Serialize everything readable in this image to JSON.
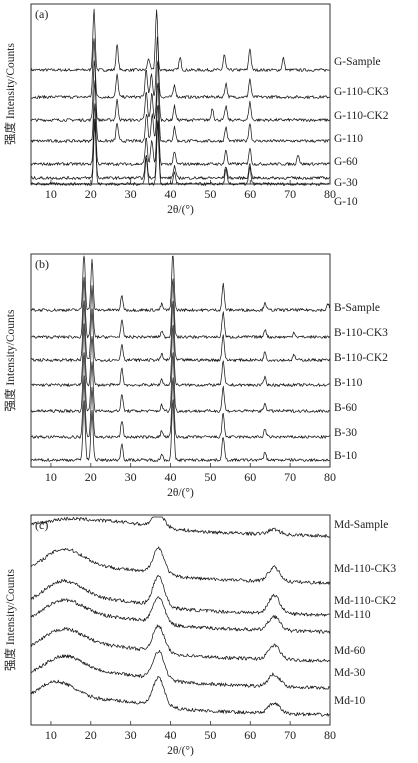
{
  "chart_data": [
    {
      "panel": "(a)",
      "type": "line",
      "xlabel": "2θ/(°)",
      "ylabel": "强度 Intensity/Counts",
      "xlim": [
        5,
        80
      ],
      "x_ticks": [
        10,
        20,
        30,
        40,
        50,
        60,
        70,
        80
      ],
      "series": [
        {
          "name": "G-Sample",
          "peaks": [
            [
              20.8,
              60
            ],
            [
              26.6,
              25
            ],
            [
              34.5,
              12
            ],
            [
              36.5,
              60
            ],
            [
              42.4,
              12
            ],
            [
              53.5,
              15
            ],
            [
              59.9,
              22
            ],
            [
              68.3,
              12
            ]
          ]
        },
        {
          "name": "G-110-CK3",
          "peaks": [
            [
              20.8,
              60
            ],
            [
              26.6,
              22
            ],
            [
              33.9,
              28
            ],
            [
              35.2,
              22
            ],
            [
              36.7,
              60
            ],
            [
              41.0,
              12
            ],
            [
              53.9,
              14
            ],
            [
              59.9,
              18
            ]
          ]
        },
        {
          "name": "G-110-CK2",
          "peaks": [
            [
              20.9,
              60
            ],
            [
              26.6,
              20
            ],
            [
              33.9,
              28
            ],
            [
              35.3,
              26
            ],
            [
              36.8,
              60
            ],
            [
              41.0,
              14
            ],
            [
              50.5,
              12
            ],
            [
              53.9,
              14
            ],
            [
              59.9,
              18
            ]
          ]
        },
        {
          "name": "G-110",
          "peaks": [
            [
              21.0,
              60
            ],
            [
              26.6,
              18
            ],
            [
              34.0,
              28
            ],
            [
              35.4,
              28
            ],
            [
              36.8,
              60
            ],
            [
              41.0,
              14
            ],
            [
              53.9,
              14
            ],
            [
              59.9,
              18
            ]
          ]
        },
        {
          "name": "G-60",
          "peaks": [
            [
              21.0,
              60
            ],
            [
              33.9,
              26
            ],
            [
              35.3,
              24
            ],
            [
              36.8,
              60
            ],
            [
              41.0,
              12
            ],
            [
              53.9,
              14
            ],
            [
              59.9,
              16
            ],
            [
              72.0,
              10
            ]
          ]
        },
        {
          "name": "G-30",
          "peaks": [
            [
              21.0,
              60
            ],
            [
              33.9,
              26
            ],
            [
              36.8,
              60
            ],
            [
              41.0,
              12
            ],
            [
              53.9,
              14
            ],
            [
              59.9,
              16
            ]
          ]
        },
        {
          "name": "G-10",
          "peaks": [
            [
              21.0,
              60
            ],
            [
              33.9,
              24
            ],
            [
              36.8,
              60
            ],
            [
              41.0,
              12
            ],
            [
              53.9,
              12
            ],
            [
              59.9,
              14
            ]
          ]
        }
      ]
    },
    {
      "panel": "(b)",
      "type": "line",
      "xlabel": "2θ/(°)",
      "ylabel": "强度 Intensity/Counts",
      "xlim": [
        5,
        80
      ],
      "x_ticks": [
        10,
        20,
        30,
        40,
        50,
        60,
        70,
        80
      ],
      "series": [
        {
          "name": "B-Sample",
          "peaks": [
            [
              18.3,
              60
            ],
            [
              20.3,
              50
            ],
            [
              27.8,
              14
            ],
            [
              37.8,
              6
            ],
            [
              40.6,
              60
            ],
            [
              53.2,
              26
            ],
            [
              63.7,
              8
            ],
            [
              79.5,
              6
            ]
          ]
        },
        {
          "name": "B-110-CK3",
          "peaks": [
            [
              18.3,
              60
            ],
            [
              20.3,
              50
            ],
            [
              27.8,
              16
            ],
            [
              37.8,
              6
            ],
            [
              40.6,
              60
            ],
            [
              53.2,
              26
            ],
            [
              63.7,
              8
            ],
            [
              71.0,
              5
            ]
          ]
        },
        {
          "name": "B-110-CK2",
          "peaks": [
            [
              18.3,
              60
            ],
            [
              20.3,
              50
            ],
            [
              27.8,
              16
            ],
            [
              37.8,
              6
            ],
            [
              40.6,
              60
            ],
            [
              53.2,
              26
            ],
            [
              63.7,
              8
            ],
            [
              71.0,
              5
            ]
          ]
        },
        {
          "name": "B-110",
          "peaks": [
            [
              18.3,
              60
            ],
            [
              20.3,
              50
            ],
            [
              27.8,
              16
            ],
            [
              37.8,
              6
            ],
            [
              40.6,
              60
            ],
            [
              53.2,
              24
            ],
            [
              63.7,
              8
            ]
          ]
        },
        {
          "name": "B-60",
          "peaks": [
            [
              18.3,
              60
            ],
            [
              20.3,
              50
            ],
            [
              27.8,
              16
            ],
            [
              37.8,
              6
            ],
            [
              40.6,
              60
            ],
            [
              53.2,
              24
            ],
            [
              63.7,
              8
            ]
          ]
        },
        {
          "name": "B-30",
          "peaks": [
            [
              18.3,
              60
            ],
            [
              20.3,
              50
            ],
            [
              27.8,
              16
            ],
            [
              37.8,
              6
            ],
            [
              40.6,
              60
            ],
            [
              53.2,
              24
            ],
            [
              63.7,
              8
            ]
          ]
        },
        {
          "name": "B-10",
          "peaks": [
            [
              18.3,
              60
            ],
            [
              20.3,
              50
            ],
            [
              27.8,
              16
            ],
            [
              37.8,
              6
            ],
            [
              40.6,
              60
            ],
            [
              53.2,
              24
            ],
            [
              63.7,
              8
            ]
          ]
        }
      ]
    },
    {
      "panel": "(c)",
      "type": "line",
      "xlabel": "2θ/(°)",
      "ylabel": "强度 Intensity/Counts",
      "xlim": [
        5,
        80
      ],
      "x_ticks": [
        10,
        20,
        30,
        40,
        50,
        60,
        70,
        80
      ],
      "series": [
        {
          "name": "Md-Sample",
          "peaks": [
            [
              13,
              5
            ],
            [
              37.0,
              14
            ],
            [
              66.0,
              5
            ]
          ]
        },
        {
          "name": "Md-110-CK3",
          "peaks": [
            [
              13,
              22
            ],
            [
              37.0,
              26
            ],
            [
              66.0,
              14
            ]
          ]
        },
        {
          "name": "Md-110-CK2",
          "peaks": [
            [
              13,
              22
            ],
            [
              37.0,
              30
            ],
            [
              66.0,
              18
            ]
          ]
        },
        {
          "name": "Md-110",
          "peaks": [
            [
              13,
              20
            ],
            [
              37.0,
              26
            ],
            [
              66.0,
              14
            ]
          ]
        },
        {
          "name": "Md-60",
          "peaks": [
            [
              13,
              20
            ],
            [
              37.0,
              26
            ],
            [
              66.0,
              14
            ]
          ]
        },
        {
          "name": "Md-30",
          "peaks": [
            [
              13,
              20
            ],
            [
              37.0,
              28
            ],
            [
              66.0,
              12
            ]
          ]
        },
        {
          "name": "Md-10",
          "peaks": [
            [
              11,
              22
            ],
            [
              37.0,
              28
            ],
            [
              66.0,
              10
            ]
          ]
        }
      ]
    }
  ]
}
